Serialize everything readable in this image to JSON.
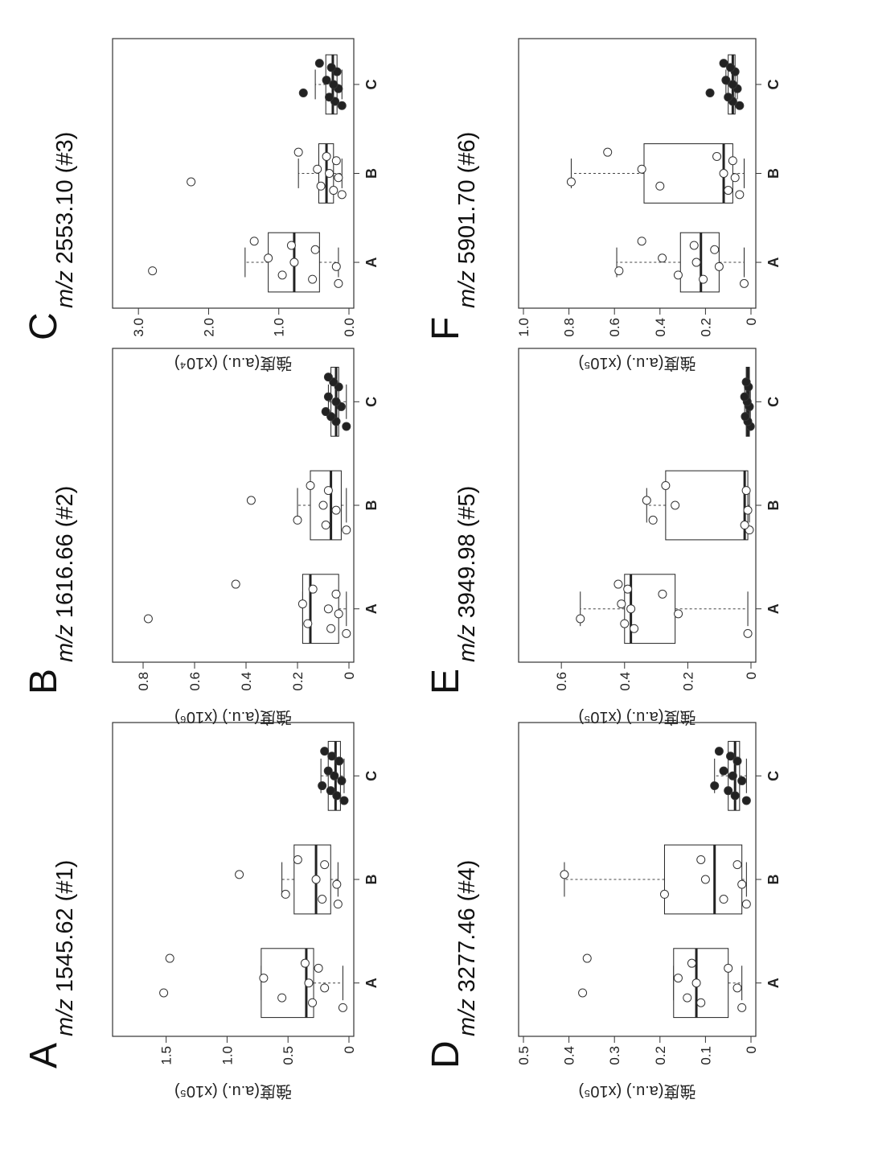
{
  "chart_data": [
    {
      "type": "box",
      "panel": "A",
      "title_italic": "m/z",
      "title_rest": "1545.62 (#1)",
      "ylabel": "強度(a.u.) (x10⁵)",
      "ylim": [
        0,
        1.9
      ],
      "yticks": [
        0,
        0.5,
        1.0,
        1.5
      ],
      "ytick_labels": [
        "0",
        "0.5",
        "1.0",
        "1.5"
      ],
      "categories": [
        "A",
        "B",
        "C"
      ],
      "boxes": [
        {
          "q1": 0.29,
          "median": 0.35,
          "q3": 0.72,
          "whisker_low": 0.05,
          "whisker_high": 0.72
        },
        {
          "q1": 0.15,
          "median": 0.27,
          "q3": 0.45,
          "whisker_low": 0.09,
          "whisker_high": 0.55
        },
        {
          "q1": 0.07,
          "median": 0.11,
          "q3": 0.17,
          "whisker_low": 0.04,
          "whisker_high": 0.23
        }
      ],
      "points": [
        [
          0.05,
          0.2,
          0.25,
          0.3,
          0.33,
          0.36,
          0.55,
          0.7,
          1.47,
          1.52
        ],
        [
          0.09,
          0.1,
          0.2,
          0.22,
          0.27,
          0.42,
          0.52,
          0.9
        ],
        [
          0.04,
          0.06,
          0.08,
          0.1,
          0.12,
          0.14,
          0.15,
          0.17,
          0.2,
          0.22
        ]
      ]
    },
    {
      "type": "box",
      "panel": "B",
      "title_italic": "m/z",
      "title_rest": "1616.66 (#2)",
      "ylabel": "強度(a.u.) (x10⁶)",
      "ylim": [
        0,
        0.9
      ],
      "yticks": [
        0,
        0.2,
        0.4,
        0.6,
        0.8
      ],
      "ytick_labels": [
        "0",
        "0.2",
        "0.4",
        "0.6",
        "0.8"
      ],
      "categories": [
        "A",
        "B",
        "C"
      ],
      "boxes": [
        {
          "q1": 0.04,
          "median": 0.15,
          "q3": 0.18,
          "whisker_low": 0.01,
          "whisker_high": 0.18
        },
        {
          "q1": 0.03,
          "median": 0.07,
          "q3": 0.15,
          "whisker_low": 0.01,
          "whisker_high": 0.2
        },
        {
          "q1": 0.04,
          "median": 0.05,
          "q3": 0.07,
          "whisker_low": 0.01,
          "whisker_high": 0.08
        }
      ],
      "points": [
        [
          0.01,
          0.04,
          0.05,
          0.07,
          0.08,
          0.14,
          0.16,
          0.18,
          0.44,
          0.78
        ],
        [
          0.01,
          0.05,
          0.08,
          0.09,
          0.1,
          0.15,
          0.2,
          0.38
        ],
        [
          0.01,
          0.03,
          0.04,
          0.05,
          0.05,
          0.06,
          0.07,
          0.08,
          0.08,
          0.09
        ]
      ]
    },
    {
      "type": "box",
      "panel": "C",
      "title_italic": "m/z",
      "title_rest": "2553.10 (#3)",
      "ylabel": "強度(a.u.) (x10⁴)",
      "ylim": [
        0,
        3.3
      ],
      "yticks": [
        0,
        1.0,
        2.0,
        3.0
      ],
      "ytick_labels": [
        "0.0",
        "1.0",
        "2.0",
        "3.0"
      ],
      "categories": [
        "A",
        "B",
        "C"
      ],
      "boxes": [
        {
          "q1": 0.42,
          "median": 0.78,
          "q3": 1.15,
          "whisker_low": 0.15,
          "whisker_high": 1.48
        },
        {
          "q1": 0.22,
          "median": 0.32,
          "q3": 0.43,
          "whisker_low": 0.1,
          "whisker_high": 0.72
        },
        {
          "q1": 0.17,
          "median": 0.23,
          "q3": 0.33,
          "whisker_low": 0.1,
          "whisker_high": 0.48
        }
      ],
      "points": [
        [
          0.15,
          0.18,
          0.48,
          0.52,
          0.78,
          0.82,
          0.95,
          1.15,
          1.35,
          2.8
        ],
        [
          0.1,
          0.15,
          0.18,
          0.22,
          0.28,
          0.32,
          0.4,
          0.45,
          0.72,
          2.25
        ],
        [
          0.1,
          0.15,
          0.17,
          0.2,
          0.22,
          0.25,
          0.28,
          0.32,
          0.42,
          0.65
        ]
      ]
    },
    {
      "type": "box",
      "panel": "D",
      "title_italic": "m/z",
      "title_rest": "3277.46 (#4)",
      "ylabel": "強度(a.u.) (x10⁵)",
      "ylim": [
        0,
        0.5
      ],
      "yticks": [
        0,
        0.1,
        0.2,
        0.3,
        0.4,
        0.5
      ],
      "ytick_labels": [
        "0",
        "0.1",
        "0.2",
        "0.3",
        "0.4",
        "0.5"
      ],
      "categories": [
        "A",
        "B",
        "C"
      ],
      "boxes": [
        {
          "q1": 0.05,
          "median": 0.12,
          "q3": 0.17,
          "whisker_low": 0.02,
          "whisker_high": 0.17
        },
        {
          "q1": 0.02,
          "median": 0.08,
          "q3": 0.19,
          "whisker_low": 0.01,
          "whisker_high": 0.41
        },
        {
          "q1": 0.025,
          "median": 0.035,
          "q3": 0.05,
          "whisker_low": 0.01,
          "whisker_high": 0.08
        }
      ],
      "points": [
        [
          0.02,
          0.03,
          0.05,
          0.11,
          0.12,
          0.13,
          0.14,
          0.16,
          0.36,
          0.37
        ],
        [
          0.01,
          0.02,
          0.03,
          0.06,
          0.1,
          0.11,
          0.19,
          0.41
        ],
        [
          0.01,
          0.02,
          0.03,
          0.035,
          0.04,
          0.045,
          0.05,
          0.06,
          0.07,
          0.08
        ]
      ]
    },
    {
      "type": "box",
      "panel": "E",
      "title_italic": "m/z",
      "title_rest": "3949.98 (#5)",
      "ylabel": "強度(a.u.) (x10⁵)",
      "ylim": [
        0,
        0.72
      ],
      "yticks": [
        0,
        0.2,
        0.4,
        0.6
      ],
      "ytick_labels": [
        "0",
        "0.2",
        "0.4",
        "0.6"
      ],
      "categories": [
        "A",
        "B",
        "C"
      ],
      "boxes": [
        {
          "q1": 0.24,
          "median": 0.38,
          "q3": 0.4,
          "whisker_low": 0.01,
          "whisker_high": 0.54
        },
        {
          "q1": 0.01,
          "median": 0.02,
          "q3": 0.27,
          "whisker_low": 0.005,
          "whisker_high": 0.33
        },
        {
          "q1": 0.005,
          "median": 0.01,
          "q3": 0.015,
          "whisker_low": 0.002,
          "whisker_high": 0.02
        }
      ],
      "points": [
        [
          0.01,
          0.23,
          0.28,
          0.37,
          0.38,
          0.39,
          0.4,
          0.41,
          0.42,
          0.54
        ],
        [
          0.005,
          0.01,
          0.015,
          0.02,
          0.24,
          0.27,
          0.31,
          0.33
        ],
        [
          0.002,
          0.005,
          0.008,
          0.01,
          0.012,
          0.015,
          0.018,
          0.02
        ]
      ]
    },
    {
      "type": "box",
      "panel": "F",
      "title_italic": "m/z",
      "title_rest": "5901.70 (#6)",
      "ylabel": "強度(a.u.) (x10⁵)",
      "ylim": [
        0,
        1.0
      ],
      "yticks": [
        0,
        0.2,
        0.4,
        0.6,
        0.8,
        1.0
      ],
      "ytick_labels": [
        "0",
        "0.2",
        "0.4",
        "0.6",
        "0.8",
        "1.0"
      ],
      "categories": [
        "A",
        "B",
        "C"
      ],
      "boxes": [
        {
          "q1": 0.14,
          "median": 0.22,
          "q3": 0.31,
          "whisker_low": 0.03,
          "whisker_high": 0.59
        },
        {
          "q1": 0.08,
          "median": 0.12,
          "q3": 0.47,
          "whisker_low": 0.03,
          "whisker_high": 0.79
        },
        {
          "q1": 0.07,
          "median": 0.08,
          "q3": 0.1,
          "whisker_low": 0.06,
          "whisker_high": 0.11
        }
      ],
      "points": [
        [
          0.03,
          0.14,
          0.16,
          0.21,
          0.24,
          0.25,
          0.32,
          0.39,
          0.48,
          0.58
        ],
        [
          0.05,
          0.07,
          0.08,
          0.1,
          0.12,
          0.15,
          0.4,
          0.48,
          0.63,
          0.79
        ],
        [
          0.05,
          0.06,
          0.07,
          0.08,
          0.08,
          0.09,
          0.1,
          0.11,
          0.12,
          0.18
        ]
      ]
    }
  ],
  "colors": {
    "open_point": "#ffffff",
    "filled_point": "#222222",
    "line": "#222222",
    "dash": "#444444"
  }
}
